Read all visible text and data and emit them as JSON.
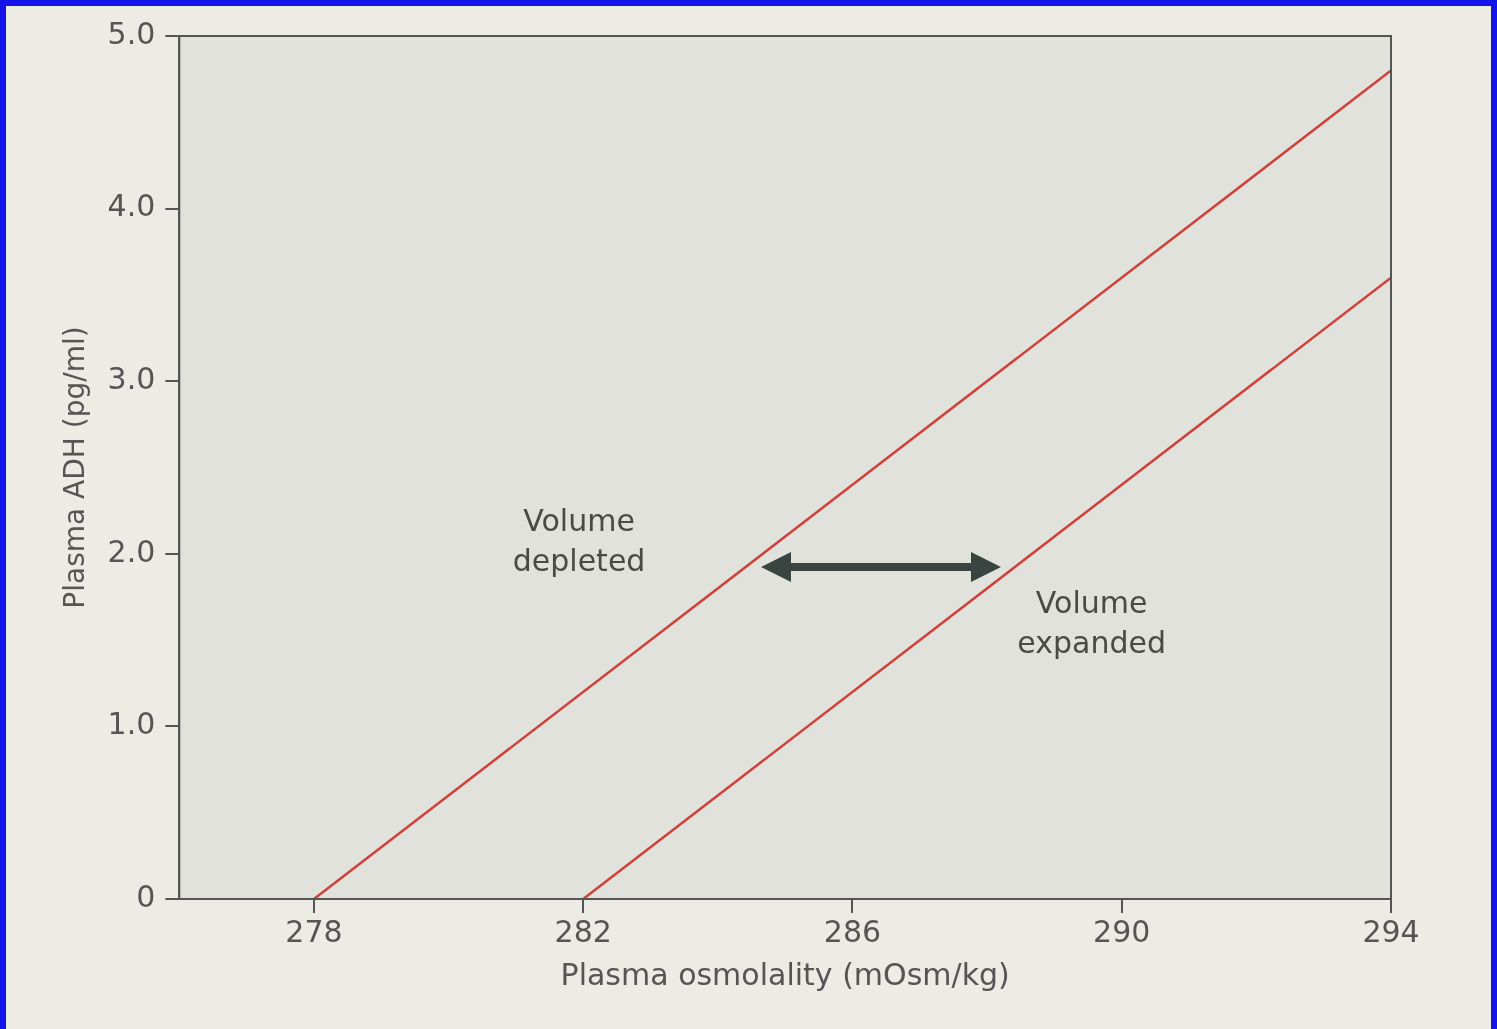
{
  "chart_data": {
    "type": "line",
    "xlabel": "Plasma osmolality (mOsm/kg)",
    "ylabel": "Plasma ADH (pg/ml)",
    "series": [
      {
        "name": "Volume depleted",
        "color": "#d0403a",
        "x": [
          278,
          294
        ],
        "values": [
          0,
          4.8
        ]
      },
      {
        "name": "Volume expanded",
        "color": "#d0403a",
        "x": [
          282,
          294
        ],
        "values": [
          0,
          3.6
        ]
      }
    ],
    "xlim": [
      276,
      294
    ],
    "xticks": [
      278,
      282,
      286,
      290,
      294
    ],
    "ylim": [
      0,
      5
    ],
    "yticks": [
      0,
      {
        "value": 1,
        "label": "1.0"
      },
      {
        "value": 2,
        "label": "2.0"
      },
      {
        "value": 3,
        "label": "3.0"
      },
      {
        "value": 4,
        "label": "4.0"
      },
      {
        "value": 5,
        "label": "5.0"
      }
    ],
    "grid": false,
    "legend": false,
    "marker": "none",
    "line_style": "solid"
  }
}
